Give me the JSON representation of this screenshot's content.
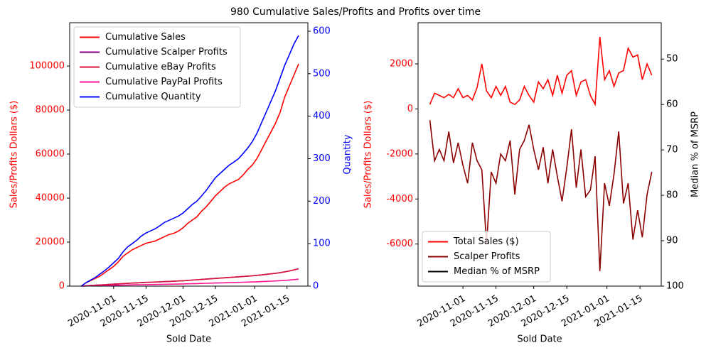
{
  "title": "980 Cumulative Sales/Profits and Profits over time",
  "chart_data": [
    {
      "type": "line",
      "xlabel": "Sold Date",
      "ylabel": "Sales/Profits Dollars ($)",
      "y2label": "Quantity",
      "ycolor": "#ff0000",
      "y2color": "#0000ff",
      "legend": "upper left",
      "xlim": [
        "2020-10-13",
        "2021-01-24"
      ],
      "xticks": [
        "2020-11-01",
        "2020-11-15",
        "2020-12-01",
        "2020-12-15",
        "2021-01-01",
        "2021-01-15"
      ],
      "ylim": [
        0,
        119700
      ],
      "yticks": [
        0,
        20000,
        40000,
        60000,
        80000,
        100000
      ],
      "y2lim": [
        0,
        620
      ],
      "y2ticks": [
        0,
        100,
        200,
        300,
        400,
        500,
        600
      ],
      "x": [
        "2020-10-18",
        "2020-10-20",
        "2020-10-22",
        "2020-10-24",
        "2020-10-26",
        "2020-10-28",
        "2020-10-30",
        "2020-11-01",
        "2020-11-03",
        "2020-11-05",
        "2020-11-07",
        "2020-11-09",
        "2020-11-11",
        "2020-11-13",
        "2020-11-15",
        "2020-11-17",
        "2020-11-19",
        "2020-11-21",
        "2020-11-23",
        "2020-11-25",
        "2020-11-27",
        "2020-11-29",
        "2020-12-01",
        "2020-12-03",
        "2020-12-05",
        "2020-12-07",
        "2020-12-09",
        "2020-12-11",
        "2020-12-13",
        "2020-12-15",
        "2020-12-17",
        "2020-12-19",
        "2020-12-21",
        "2020-12-23",
        "2020-12-25",
        "2020-12-27",
        "2020-12-29",
        "2020-12-31",
        "2021-01-02",
        "2021-01-04",
        "2021-01-06",
        "2021-01-08",
        "2021-01-10",
        "2021-01-12",
        "2021-01-14",
        "2021-01-16",
        "2021-01-18",
        "2021-01-20"
      ],
      "series": [
        {
          "name": "Cumulative Sales",
          "color": "#ff0000",
          "axis": "y",
          "values": [
            0,
            1500,
            2500,
            3500,
            4500,
            6000,
            7500,
            9000,
            11000,
            13500,
            15000,
            16500,
            17500,
            18500,
            19500,
            20000,
            20500,
            21500,
            22500,
            23500,
            24000,
            25000,
            26500,
            28500,
            30000,
            31500,
            34000,
            36000,
            38500,
            41000,
            43000,
            45000,
            46500,
            47500,
            48500,
            50500,
            53000,
            55000,
            58000,
            62000,
            66000,
            70000,
            74000,
            79000,
            86000,
            91000,
            96000,
            101000
          ]
        },
        {
          "name": "Cumulative Scalper Profits",
          "color": "#800080",
          "axis": "y",
          "values": [
            0,
            140,
            290,
            410,
            530,
            650,
            770,
            890,
            1010,
            1140,
            1270,
            1390,
            1490,
            1590,
            1690,
            1770,
            1850,
            1940,
            2040,
            2140,
            2240,
            2340,
            2440,
            2590,
            2740,
            2890,
            3040,
            3190,
            3340,
            3490,
            3640,
            3790,
            3940,
            4090,
            4240,
            4390,
            4540,
            4690,
            4890,
            5090,
            5340,
            5590,
            5840,
            6140,
            6490,
            6890,
            7390,
            7890
          ]
        },
        {
          "name": "Cumulative eBay Profits",
          "color": "#dc143c",
          "axis": "y",
          "values": [
            0,
            150,
            300,
            420,
            540,
            660,
            780,
            900,
            1020,
            1150,
            1280,
            1400,
            1500,
            1600,
            1700,
            1780,
            1860,
            1950,
            2050,
            2150,
            2250,
            2350,
            2450,
            2600,
            2750,
            2900,
            3050,
            3200,
            3350,
            3500,
            3650,
            3800,
            3950,
            4100,
            4250,
            4400,
            4550,
            4700,
            4900,
            5100,
            5350,
            5600,
            5850,
            6150,
            6500,
            6900,
            7400,
            7900
          ]
        },
        {
          "name": "Cumulative PayPal Profits",
          "color": "#ff1493",
          "axis": "y",
          "values": [
            0,
            60,
            120,
            170,
            220,
            270,
            320,
            370,
            420,
            470,
            520,
            570,
            610,
            650,
            690,
            720,
            750,
            790,
            830,
            870,
            910,
            950,
            990,
            1050,
            1110,
            1170,
            1230,
            1290,
            1350,
            1410,
            1470,
            1530,
            1590,
            1650,
            1710,
            1770,
            1830,
            1890,
            1970,
            2050,
            2150,
            2250,
            2350,
            2470,
            2610,
            2770,
            2970,
            3170
          ]
        },
        {
          "name": "Cumulative Quantity",
          "color": "#0000ff",
          "axis": "y2",
          "values": [
            0,
            8,
            14,
            20,
            28,
            36,
            45,
            55,
            65,
            80,
            92,
            100,
            108,
            118,
            125,
            130,
            135,
            142,
            150,
            155,
            160,
            165,
            172,
            182,
            192,
            200,
            212,
            225,
            240,
            255,
            265,
            275,
            285,
            292,
            300,
            312,
            325,
            340,
            360,
            385,
            410,
            435,
            460,
            490,
            520,
            545,
            570,
            590
          ]
        }
      ]
    },
    {
      "type": "line",
      "xlabel": "Sold Date",
      "ylabel": "Sales/Profits Dollars ($)",
      "y2label": "Median % of MSRP",
      "ycolor": "#ff0000",
      "y2color": "#000000",
      "legend": "lower left",
      "xlim": [
        "2020-10-13",
        "2021-01-24"
      ],
      "xticks": [
        "2020-11-01",
        "2020-11-15",
        "2020-12-01",
        "2020-12-15",
        "2021-01-01",
        "2021-01-15"
      ],
      "ylim": [
        -7870,
        3830
      ],
      "yticks": [
        -6000,
        -4000,
        -2000,
        0,
        2000
      ],
      "y2lim": [
        100,
        42
      ],
      "y2ticks": [
        50,
        60,
        70,
        80,
        90,
        100
      ],
      "x": [
        "2020-10-18",
        "2020-10-20",
        "2020-10-22",
        "2020-10-24",
        "2020-10-26",
        "2020-10-28",
        "2020-10-30",
        "2020-11-01",
        "2020-11-03",
        "2020-11-05",
        "2020-11-07",
        "2020-11-09",
        "2020-11-11",
        "2020-11-13",
        "2020-11-15",
        "2020-11-17",
        "2020-11-19",
        "2020-11-21",
        "2020-11-23",
        "2020-11-25",
        "2020-11-27",
        "2020-11-29",
        "2020-12-01",
        "2020-12-03",
        "2020-12-05",
        "2020-12-07",
        "2020-12-09",
        "2020-12-11",
        "2020-12-13",
        "2020-12-15",
        "2020-12-17",
        "2020-12-19",
        "2020-12-21",
        "2020-12-23",
        "2020-12-25",
        "2020-12-27",
        "2020-12-29",
        "2020-12-31",
        "2021-01-02",
        "2021-01-04",
        "2021-01-06",
        "2021-01-08",
        "2021-01-10",
        "2021-01-12",
        "2021-01-14",
        "2021-01-16",
        "2021-01-18",
        "2021-01-20"
      ],
      "series": [
        {
          "name": "Total Sales ($)",
          "color": "#ff0000",
          "axis": "y",
          "values": [
            200,
            700,
            600,
            500,
            650,
            500,
            900,
            500,
            600,
            400,
            950,
            2000,
            800,
            500,
            1000,
            600,
            1000,
            300,
            200,
            400,
            1000,
            600,
            300,
            1200,
            900,
            1300,
            600,
            1500,
            700,
            1500,
            1700,
            600,
            1200,
            1300,
            600,
            200,
            3200,
            1300,
            1700,
            1000,
            1600,
            1700,
            2700,
            2300,
            2400,
            1300,
            2000,
            1500
          ]
        },
        {
          "name": "Scalper Profits",
          "color": "#8b0000",
          "axis": "y",
          "values": [
            -500,
            -2300,
            -1800,
            -2300,
            -1000,
            -2400,
            -1500,
            -2500,
            -3300,
            -1500,
            -2300,
            -2700,
            -6000,
            -2800,
            -3300,
            -2000,
            -2300,
            -1400,
            -3800,
            -1800,
            -1400,
            -700,
            -1800,
            -2700,
            -1700,
            -3300,
            -1800,
            -3000,
            -4100,
            -2600,
            -900,
            -3500,
            -1800,
            -3900,
            -3600,
            -2100,
            -7200,
            -3300,
            -4300,
            -2900,
            -1000,
            -4200,
            -3300,
            -5800,
            -4500,
            -5700,
            -3800,
            -2800
          ]
        },
        {
          "name": "Median % of MSRP",
          "color": "#000000",
          "axis": "y2",
          "values": [
            null,
            null,
            null,
            null,
            null,
            null,
            null,
            null,
            null,
            null,
            null,
            null,
            null,
            null,
            null,
            null,
            null,
            null,
            null,
            null,
            null,
            null,
            null,
            null,
            null,
            null,
            null,
            null,
            null,
            null,
            null,
            null,
            null,
            null,
            null,
            null,
            null,
            null,
            null,
            null,
            null,
            null,
            null,
            null,
            null,
            null,
            null,
            null
          ]
        }
      ]
    }
  ]
}
